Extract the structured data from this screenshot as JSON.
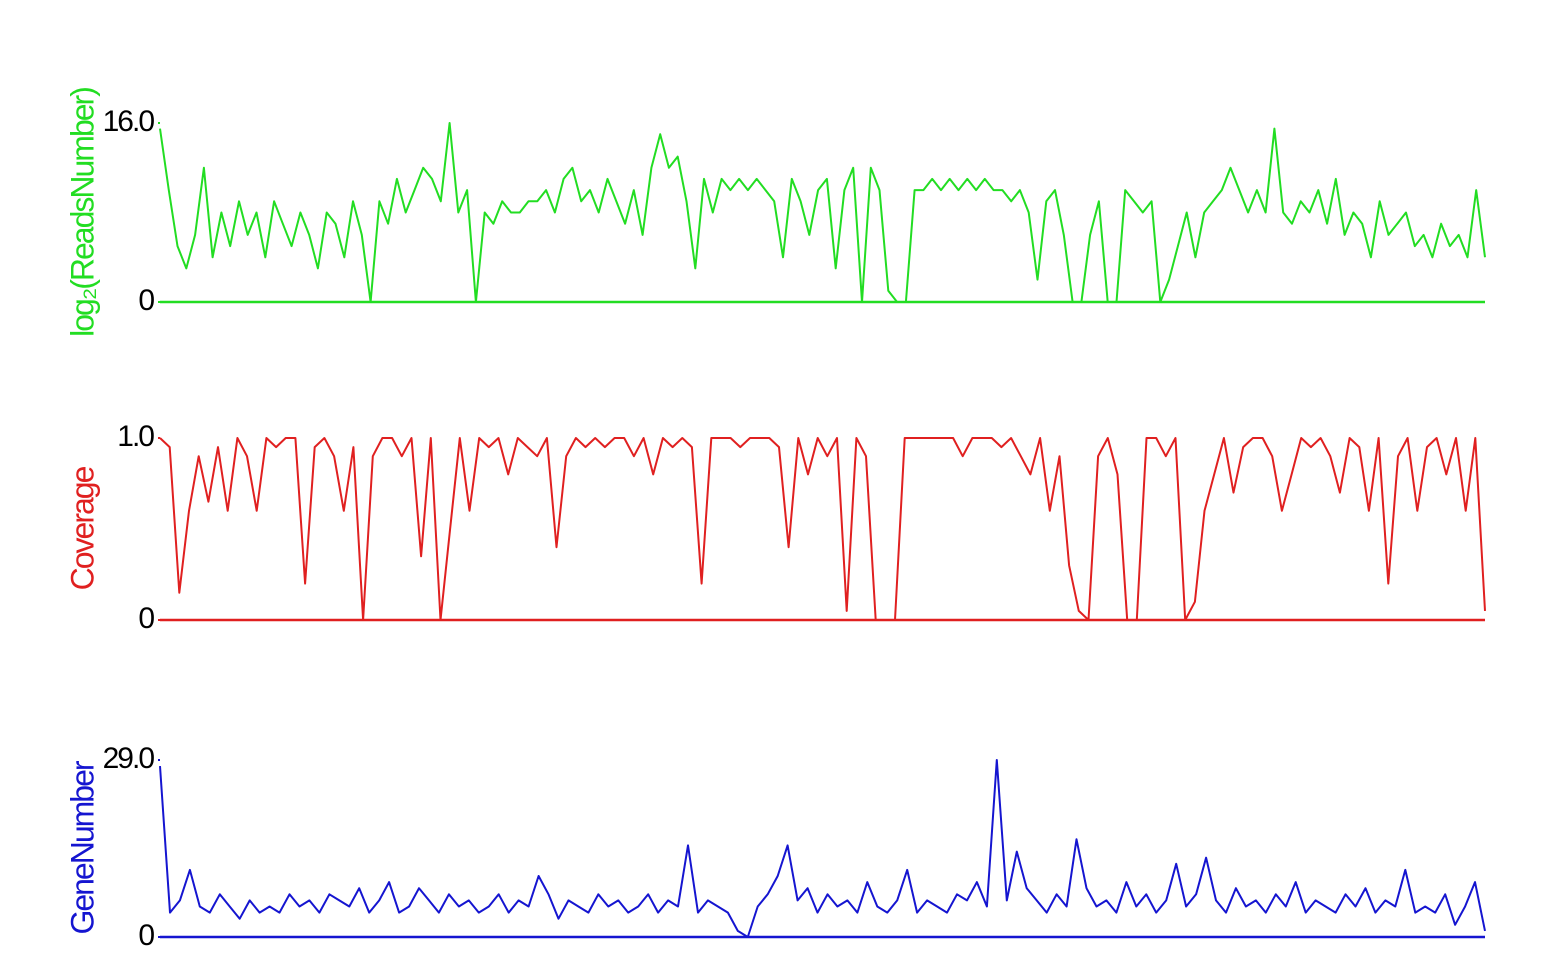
{
  "chart_data": [
    {
      "type": "line",
      "ylabel": "log₂(ReadsNumber)",
      "color": "#22dd22",
      "ylim": [
        0,
        16
      ],
      "yticks": [
        0,
        {
          "value": 16,
          "label": "16.0"
        }
      ],
      "values": [
        15.5,
        10,
        5,
        3,
        6,
        12,
        4,
        8,
        5,
        9,
        6,
        8,
        4,
        9,
        7,
        5,
        8,
        6,
        3,
        8,
        7,
        4,
        9,
        6,
        0,
        9,
        7,
        11,
        8,
        10,
        12,
        11,
        9,
        16,
        8,
        10,
        0,
        8,
        7,
        9,
        8,
        8,
        9,
        9,
        10,
        8,
        11,
        12,
        9,
        10,
        8,
        11,
        9,
        7,
        10,
        6,
        12,
        15,
        12,
        13,
        9,
        3,
        11,
        8,
        11,
        10,
        11,
        10,
        11,
        10,
        9,
        4,
        11,
        9,
        6,
        10,
        11,
        3,
        10,
        12,
        0,
        12,
        10,
        1,
        0,
        0,
        10,
        10,
        11,
        10,
        11,
        10,
        11,
        10,
        11,
        10,
        10,
        9,
        10,
        8,
        2,
        9,
        10,
        6,
        0,
        0,
        6,
        9,
        0,
        0,
        10,
        9,
        8,
        9,
        0,
        2,
        5,
        8,
        4,
        8,
        9,
        10,
        12,
        10,
        8,
        10,
        8,
        15.5,
        8,
        7,
        9,
        8,
        10,
        7,
        11,
        6,
        8,
        7,
        4,
        9,
        6,
        7,
        8,
        5,
        6,
        4,
        7,
        5,
        6,
        4,
        10,
        4
      ]
    },
    {
      "type": "line",
      "ylabel": "Coverage",
      "color": "#e02020",
      "ylim": [
        0,
        1
      ],
      "yticks": [
        0,
        {
          "value": 1,
          "label": "1.0"
        }
      ],
      "values": [
        1,
        0.95,
        0.15,
        0.6,
        0.9,
        0.65,
        0.95,
        0.6,
        1,
        0.9,
        0.6,
        1,
        0.95,
        1,
        1,
        0.2,
        0.95,
        1,
        0.9,
        0.6,
        0.95,
        0,
        0.9,
        1,
        1,
        0.9,
        1,
        0.35,
        1,
        0,
        0.5,
        1,
        0.6,
        1,
        0.95,
        1,
        0.8,
        1,
        0.95,
        0.9,
        1,
        0.4,
        0.9,
        1,
        0.95,
        1,
        0.95,
        1,
        1,
        0.9,
        1,
        0.8,
        1,
        0.95,
        1,
        0.95,
        0.2,
        1,
        1,
        1,
        0.95,
        1,
        1,
        1,
        0.95,
        0.4,
        1,
        0.8,
        1,
        0.9,
        1,
        0.05,
        1,
        0.9,
        0,
        0,
        0,
        1,
        1,
        1,
        1,
        1,
        1,
        0.9,
        1,
        1,
        1,
        0.95,
        1,
        0.9,
        0.8,
        1,
        0.6,
        0.9,
        0.3,
        0.05,
        0,
        0.9,
        1,
        0.8,
        0,
        0,
        1,
        1,
        0.9,
        1,
        0,
        0.1,
        0.6,
        0.8,
        1,
        0.7,
        0.95,
        1,
        1,
        0.9,
        0.6,
        0.8,
        1,
        0.95,
        1,
        0.9,
        0.7,
        1,
        0.95,
        0.6,
        1,
        0.2,
        0.9,
        1,
        0.6,
        0.95,
        1,
        0.8,
        1,
        0.6,
        1,
        0.05
      ]
    },
    {
      "type": "line",
      "ylabel": "GeneNumber",
      "color": "#1515d0",
      "ylim": [
        0,
        29
      ],
      "yticks": [
        0,
        {
          "value": 29,
          "label": "29.0"
        }
      ],
      "values": [
        28,
        4,
        6,
        11,
        5,
        4,
        7,
        5,
        3,
        6,
        4,
        5,
        4,
        7,
        5,
        6,
        4,
        7,
        6,
        5,
        8,
        4,
        6,
        9,
        4,
        5,
        8,
        6,
        4,
        7,
        5,
        6,
        4,
        5,
        7,
        4,
        6,
        5,
        10,
        7,
        3,
        6,
        5,
        4,
        7,
        5,
        6,
        4,
        5,
        7,
        4,
        6,
        5,
        15,
        4,
        6,
        5,
        4,
        1,
        0,
        5,
        7,
        10,
        15,
        6,
        8,
        4,
        7,
        5,
        6,
        4,
        9,
        5,
        4,
        6,
        11,
        4,
        6,
        5,
        4,
        7,
        6,
        9,
        5,
        29,
        6,
        14,
        8,
        6,
        4,
        7,
        5,
        16,
        8,
        5,
        6,
        4,
        9,
        5,
        7,
        4,
        6,
        12,
        5,
        7,
        13,
        6,
        4,
        8,
        5,
        6,
        4,
        7,
        5,
        9,
        4,
        6,
        5,
        4,
        7,
        5,
        8,
        4,
        6,
        5,
        11,
        4,
        5,
        4,
        7,
        2,
        5,
        9,
        1
      ]
    }
  ]
}
